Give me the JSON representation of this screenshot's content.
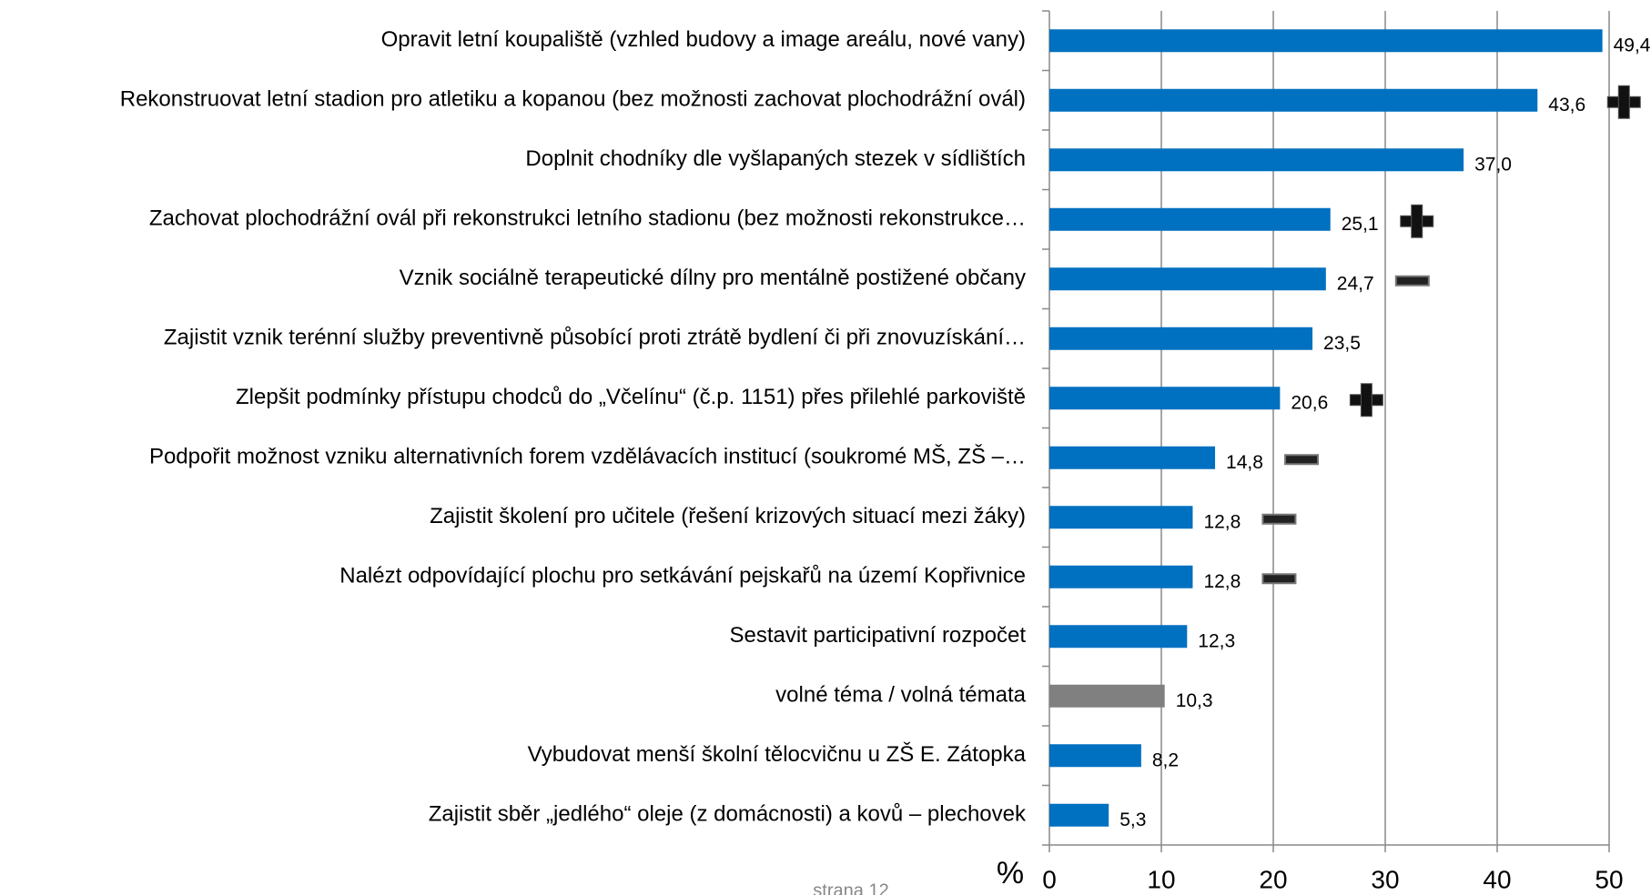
{
  "chart_data": {
    "type": "bar",
    "orientation": "horizontal",
    "categories": [
      "Opravit letní koupaliště (vzhled budovy a image areálu, nové vany)",
      "Rekonstruovat letní stadion pro atletiku a kopanou (bez možnosti zachovat plochodrážní ovál)",
      "Doplnit chodníky dle vyšlapaných stezek v sídlištích",
      "Zachovat plochodrážní ovál při rekonstrukci letního stadionu (bez možnosti rekonstrukce…",
      "Vznik sociálně terapeutické dílny pro mentálně postižené občany",
      "Zajistit vznik terénní služby preventivně působící proti ztrátě bydlení či při znovuzískání…",
      "Zlepšit podmínky přístupu chodců do „Včelínu“ (č.p. 1151) přes přilehlé parkoviště",
      "Podpořit možnost vzniku alternativních forem vzdělávacích institucí (soukromé MŠ, ZŠ –…",
      "Zajistit školení pro učitele (řešení krizových situací mezi žáky)",
      "Nalézt odpovídající plochu pro setkávání pejskařů na území Kopřivnice",
      "Sestavit participativní rozpočet",
      "volné téma / volná témata",
      "Vybudovat menší školní tělocvičnu u ZŠ E. Zátopka",
      "Zajistit sběr „jedlého“ oleje (z domácnosti) a kovů – plechovek"
    ],
    "values": [
      49.4,
      43.6,
      37.0,
      25.1,
      24.7,
      23.5,
      20.6,
      14.8,
      12.8,
      12.8,
      12.3,
      10.3,
      8.2,
      5.3
    ],
    "value_labels": [
      "49,4",
      "43,6",
      "37,0",
      "25,1",
      "24,7",
      "23,5",
      "20,6",
      "14,8",
      "12,8",
      "12,8",
      "12,3",
      "10,3",
      "8,2",
      "5,3"
    ],
    "colors": [
      "#0070c0",
      "#0070c0",
      "#0070c0",
      "#0070c0",
      "#0070c0",
      "#0070c0",
      "#0070c0",
      "#0070c0",
      "#0070c0",
      "#0070c0",
      "#0070c0",
      "#808080",
      "#0070c0",
      "#0070c0"
    ],
    "signs": [
      null,
      "plus",
      null,
      "plus",
      "minus",
      null,
      "plus",
      "minus",
      "minus",
      "minus",
      null,
      null,
      null,
      null
    ],
    "xlim": [
      0,
      50
    ],
    "xticks": [
      0,
      10,
      20,
      30,
      40,
      50
    ],
    "grid": true,
    "xlabel": "%",
    "footer": "strana 12"
  }
}
